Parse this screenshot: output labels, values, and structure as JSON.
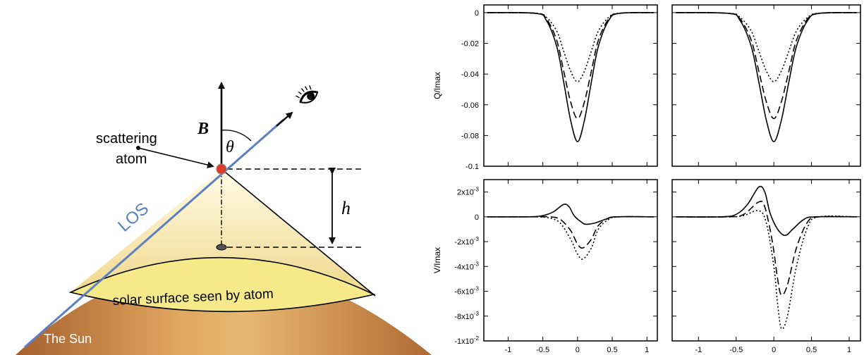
{
  "diagram": {
    "labels": {
      "b_field": "B",
      "theta": "θ",
      "scattering": "scattering",
      "atom": "atom",
      "los": "LOS",
      "height": "h",
      "surface": "solar surface seen by atom",
      "sun": "The Sun"
    },
    "icons": [
      "eye-icon"
    ],
    "colors": {
      "los_line": "#5b7fc0",
      "atom_dot": "#e03a2a",
      "sun_light": "#e8b870",
      "sun_dark": "#a6602e",
      "cap_top": "#fffbe6",
      "cap_bottom": "#f0d88a",
      "surface_fill": "#f6e98a"
    }
  },
  "chart_data": [
    {
      "type": "line",
      "panel": "top-left",
      "ylabel": "Q/Imax",
      "ylim": [
        -0.1,
        0.005
      ],
      "xlim": [
        -1.35,
        1.15
      ],
      "yticks": [
        0,
        -0.02,
        -0.04,
        -0.06,
        -0.08,
        -0.1
      ],
      "ytick_labels": [
        "0",
        "-0.02",
        "-0.04",
        "-0.06",
        "-0.08",
        "-0.1"
      ],
      "xticks": [
        -1,
        -0.5,
        0,
        0.5,
        1
      ],
      "xtick_labels": [],
      "series": [
        {
          "style": "solid",
          "values": [
            [
              -1.3,
              0
            ],
            [
              -0.6,
              -0.0005
            ],
            [
              -0.45,
              -0.005
            ],
            [
              -0.3,
              -0.022
            ],
            [
              -0.2,
              -0.045
            ],
            [
              -0.1,
              -0.07
            ],
            [
              0,
              -0.084
            ],
            [
              0.1,
              -0.07
            ],
            [
              0.2,
              -0.045
            ],
            [
              0.3,
              -0.022
            ],
            [
              0.45,
              -0.005
            ],
            [
              0.6,
              -0.0005
            ],
            [
              1.1,
              0
            ]
          ]
        },
        {
          "style": "dashed",
          "values": [
            [
              -1.3,
              0
            ],
            [
              -0.6,
              -0.0005
            ],
            [
              -0.45,
              -0.004
            ],
            [
              -0.3,
              -0.018
            ],
            [
              -0.2,
              -0.038
            ],
            [
              -0.1,
              -0.058
            ],
            [
              0,
              -0.069
            ],
            [
              0.1,
              -0.058
            ],
            [
              0.2,
              -0.038
            ],
            [
              0.3,
              -0.018
            ],
            [
              0.45,
              -0.004
            ],
            [
              0.6,
              -0.0005
            ],
            [
              1.1,
              0
            ]
          ]
        },
        {
          "style": "dotted",
          "values": [
            [
              -1.3,
              0
            ],
            [
              -0.6,
              -0.0004
            ],
            [
              -0.45,
              -0.003
            ],
            [
              -0.3,
              -0.012
            ],
            [
              -0.2,
              -0.025
            ],
            [
              -0.1,
              -0.038
            ],
            [
              0,
              -0.045
            ],
            [
              0.1,
              -0.038
            ],
            [
              0.2,
              -0.025
            ],
            [
              0.3,
              -0.012
            ],
            [
              0.45,
              -0.003
            ],
            [
              0.6,
              -0.0004
            ],
            [
              1.1,
              0
            ]
          ]
        }
      ]
    },
    {
      "type": "line",
      "panel": "top-right",
      "ylabel": "",
      "ylim": [
        -0.1,
        0.005
      ],
      "xlim": [
        -1.35,
        1.15
      ],
      "yticks": [
        0,
        -0.02,
        -0.04,
        -0.06,
        -0.08,
        -0.1
      ],
      "ytick_labels": [],
      "xticks": [
        -1,
        -0.5,
        0,
        0.5,
        1
      ],
      "xtick_labels": [],
      "series": [
        {
          "style": "solid",
          "values": [
            [
              -1.3,
              0
            ],
            [
              -0.6,
              -0.0005
            ],
            [
              -0.45,
              -0.005
            ],
            [
              -0.3,
              -0.022
            ],
            [
              -0.2,
              -0.045
            ],
            [
              -0.1,
              -0.07
            ],
            [
              0,
              -0.084
            ],
            [
              0.1,
              -0.07
            ],
            [
              0.2,
              -0.045
            ],
            [
              0.3,
              -0.022
            ],
            [
              0.45,
              -0.005
            ],
            [
              0.6,
              -0.0005
            ],
            [
              1.1,
              0
            ]
          ]
        },
        {
          "style": "dashed",
          "values": [
            [
              -1.3,
              0
            ],
            [
              -0.6,
              -0.0005
            ],
            [
              -0.45,
              -0.004
            ],
            [
              -0.3,
              -0.018
            ],
            [
              -0.2,
              -0.038
            ],
            [
              -0.1,
              -0.058
            ],
            [
              0,
              -0.069
            ],
            [
              0.1,
              -0.058
            ],
            [
              0.2,
              -0.038
            ],
            [
              0.3,
              -0.018
            ],
            [
              0.45,
              -0.004
            ],
            [
              0.6,
              -0.0005
            ],
            [
              1.1,
              0
            ]
          ]
        },
        {
          "style": "dotted",
          "values": [
            [
              -1.3,
              0
            ],
            [
              -0.6,
              -0.0004
            ],
            [
              -0.45,
              -0.003
            ],
            [
              -0.3,
              -0.012
            ],
            [
              -0.2,
              -0.025
            ],
            [
              -0.1,
              -0.038
            ],
            [
              0,
              -0.045
            ],
            [
              0.1,
              -0.038
            ],
            [
              0.2,
              -0.025
            ],
            [
              0.3,
              -0.012
            ],
            [
              0.45,
              -0.003
            ],
            [
              0.6,
              -0.0004
            ],
            [
              1.1,
              0
            ]
          ]
        }
      ]
    },
    {
      "type": "line",
      "panel": "bottom-left",
      "ylabel": "V/Imax",
      "ylim": [
        -0.01,
        0.003
      ],
      "xlim": [
        -1.35,
        1.15
      ],
      "yticks": [
        0.002,
        0,
        -0.002,
        -0.004,
        -0.006,
        -0.008,
        -0.01
      ],
      "ytick_labels": [
        [
          "2x10",
          "-3"
        ],
        [
          "0",
          ""
        ],
        [
          "-2x10",
          "-3"
        ],
        [
          "-4x10",
          "-3"
        ],
        [
          "-6x10",
          "-3"
        ],
        [
          "-8x10",
          "-3"
        ],
        [
          "-1x10",
          "-2"
        ]
      ],
      "xticks": [
        -1,
        -0.5,
        0,
        0.5,
        1
      ],
      "xtick_labels": [
        "-1",
        "-0.5",
        "0",
        "0.5",
        "1"
      ],
      "series": [
        {
          "style": "solid",
          "values": [
            [
              -1.3,
              0
            ],
            [
              -0.7,
              0
            ],
            [
              -0.5,
              0.0001
            ],
            [
              -0.35,
              0.0004
            ],
            [
              -0.2,
              0.001
            ],
            [
              -0.12,
              0.0008
            ],
            [
              -0.05,
              0.0001
            ],
            [
              0.05,
              -0.0004
            ],
            [
              0.12,
              -0.0006
            ],
            [
              0.25,
              -0.0005
            ],
            [
              0.4,
              -0.0002
            ],
            [
              0.55,
              0
            ],
            [
              1.1,
              0
            ]
          ]
        },
        {
          "style": "dashed",
          "values": [
            [
              -1.3,
              0
            ],
            [
              -0.6,
              0
            ],
            [
              -0.4,
              0
            ],
            [
              -0.25,
              -0.0002
            ],
            [
              -0.1,
              -0.0011
            ],
            [
              0,
              -0.0022
            ],
            [
              0.08,
              -0.0025
            ],
            [
              0.2,
              -0.0018
            ],
            [
              0.3,
              -0.0007
            ],
            [
              0.45,
              -0.0001
            ],
            [
              0.6,
              0
            ],
            [
              1.1,
              0
            ]
          ]
        },
        {
          "style": "dotted",
          "values": [
            [
              -1.3,
              0
            ],
            [
              -0.6,
              0
            ],
            [
              -0.4,
              -0.0001
            ],
            [
              -0.25,
              -0.0005
            ],
            [
              -0.1,
              -0.0018
            ],
            [
              0,
              -0.003
            ],
            [
              0.08,
              -0.0034
            ],
            [
              0.2,
              -0.0025
            ],
            [
              0.3,
              -0.001
            ],
            [
              0.45,
              -0.0002
            ],
            [
              0.6,
              0
            ],
            [
              1.1,
              0
            ]
          ]
        }
      ]
    },
    {
      "type": "line",
      "panel": "bottom-right",
      "ylabel": "",
      "ylim": [
        -0.01,
        0.003
      ],
      "xlim": [
        -1.35,
        1.15
      ],
      "yticks": [
        0.002,
        0,
        -0.002,
        -0.004,
        -0.006,
        -0.008,
        -0.01
      ],
      "ytick_labels": [],
      "xticks": [
        -1,
        -0.5,
        0,
        0.5,
        1
      ],
      "xtick_labels": [
        "-1",
        "-0.5",
        "0",
        "0.5",
        "1"
      ],
      "series": [
        {
          "style": "solid",
          "values": [
            [
              -1.3,
              0
            ],
            [
              -0.7,
              0
            ],
            [
              -0.5,
              0.0002
            ],
            [
              -0.35,
              0.001
            ],
            [
              -0.2,
              0.0024
            ],
            [
              -0.12,
              0.002
            ],
            [
              -0.05,
              0.0003
            ],
            [
              0.05,
              -0.001
            ],
            [
              0.15,
              -0.0015
            ],
            [
              0.25,
              -0.001
            ],
            [
              0.4,
              -0.0002
            ],
            [
              0.55,
              0
            ],
            [
              1.1,
              0
            ]
          ]
        },
        {
          "style": "dashed",
          "values": [
            [
              -1.3,
              0
            ],
            [
              -0.6,
              0
            ],
            [
              -0.4,
              0.0002
            ],
            [
              -0.2,
              0.0012
            ],
            [
              -0.12,
              0.0008
            ],
            [
              -0.02,
              -0.002
            ],
            [
              0.05,
              -0.005
            ],
            [
              0.1,
              -0.0063
            ],
            [
              0.18,
              -0.0055
            ],
            [
              0.3,
              -0.0025
            ],
            [
              0.45,
              -0.0004
            ],
            [
              0.6,
              0
            ],
            [
              1.1,
              0
            ]
          ]
        },
        {
          "style": "dotted",
          "values": [
            [
              -1.3,
              0
            ],
            [
              -0.6,
              0
            ],
            [
              -0.4,
              0.0001
            ],
            [
              -0.2,
              0.0005
            ],
            [
              -0.1,
              -0.0005
            ],
            [
              0,
              -0.004
            ],
            [
              0.05,
              -0.007
            ],
            [
              0.1,
              -0.009
            ],
            [
              0.18,
              -0.008
            ],
            [
              0.3,
              -0.004
            ],
            [
              0.45,
              -0.0008
            ],
            [
              0.6,
              0
            ],
            [
              1.1,
              0
            ]
          ]
        }
      ]
    }
  ]
}
